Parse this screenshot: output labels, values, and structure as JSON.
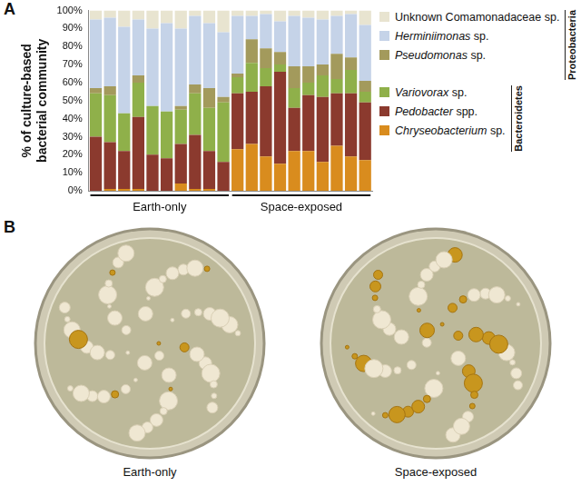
{
  "chart_data": {
    "type": "bar",
    "stacked": true,
    "panel_labels": [
      "A",
      "B"
    ],
    "ylabel": [
      "% of culture-based",
      "bacterial community"
    ],
    "categories": [
      null,
      null,
      null,
      null,
      null,
      null,
      null,
      null,
      null,
      null,
      null,
      null,
      null,
      null,
      null,
      null,
      null,
      null,
      null,
      null
    ],
    "groups": [
      {
        "label": "Earth-only",
        "from": 0,
        "to": 9
      },
      {
        "label": "Space-exposed",
        "from": 10,
        "to": 19
      }
    ],
    "ylim": [
      0,
      100
    ],
    "yticks": [
      {
        "value": 0,
        "label": "0%"
      },
      {
        "value": 10,
        "label": "10%"
      },
      {
        "value": 20,
        "label": "20%"
      },
      {
        "value": 30,
        "label": "30%"
      },
      {
        "value": 40,
        "label": "40%"
      },
      {
        "value": 50,
        "label": "50%"
      },
      {
        "value": 60,
        "label": "60%"
      },
      {
        "value": 70,
        "label": "70%"
      },
      {
        "value": 80,
        "label": "80%"
      },
      {
        "value": 90,
        "label": "90%"
      },
      {
        "value": 100,
        "label": "100%"
      }
    ],
    "grid": false,
    "legend": "right",
    "series": [
      {
        "name": "Chryseobacterium sp.",
        "color": "#d98c1e",
        "values": [
          0,
          1,
          1,
          1,
          0,
          0,
          4,
          1,
          1,
          0,
          23,
          26,
          19,
          15,
          22,
          22,
          16,
          25,
          19,
          17
        ]
      },
      {
        "name": "Pedobacter spp.",
        "color": "#8b3a2e",
        "values": [
          30,
          26,
          21,
          40,
          20,
          18,
          22,
          30,
          21,
          16,
          31,
          29,
          39,
          51,
          24,
          31,
          36,
          29,
          35,
          32
        ]
      },
      {
        "name": "Variovorax sp.",
        "color": "#8fb04a",
        "values": [
          24,
          26,
          21,
          19,
          27,
          26,
          19,
          23,
          24,
          33,
          9,
          16,
          10,
          4,
          11,
          7,
          12,
          8,
          13,
          6
        ]
      },
      {
        "name": "Pseudomonas sp.",
        "color": "#a39a5c",
        "values": [
          3,
          5,
          0,
          4,
          0,
          0,
          2,
          5,
          11,
          3,
          2,
          13,
          11,
          7,
          12,
          9,
          6,
          14,
          7,
          6
        ]
      },
      {
        "name": "Herminiimonas sp.",
        "color": "#c5d3e8",
        "values": [
          38,
          38,
          48,
          31,
          43,
          49,
          43,
          38,
          36,
          36,
          32,
          13,
          19,
          17,
          28,
          27,
          25,
          21,
          24,
          31
        ]
      },
      {
        "name": "Unknown Comamonadaceae sp.",
        "color": "#e8e4d0",
        "values": [
          5,
          4,
          9,
          5,
          10,
          7,
          10,
          3,
          7,
          12,
          3,
          3,
          2,
          6,
          3,
          4,
          5,
          3,
          2,
          8
        ]
      }
    ],
    "phyla": [
      {
        "name": "Proteobacteria",
        "series": [
          "Unknown Comamonadaceae sp.",
          "Herminiimonas sp.",
          "Pseudomonas sp."
        ]
      },
      {
        "name": "Bacteroidetes",
        "series": [
          "Variovorax sp.",
          "Pedobacter spp.",
          "Chryseobacterium sp."
        ]
      }
    ],
    "plates": [
      "Earth-only",
      "Space-exposed"
    ]
  }
}
